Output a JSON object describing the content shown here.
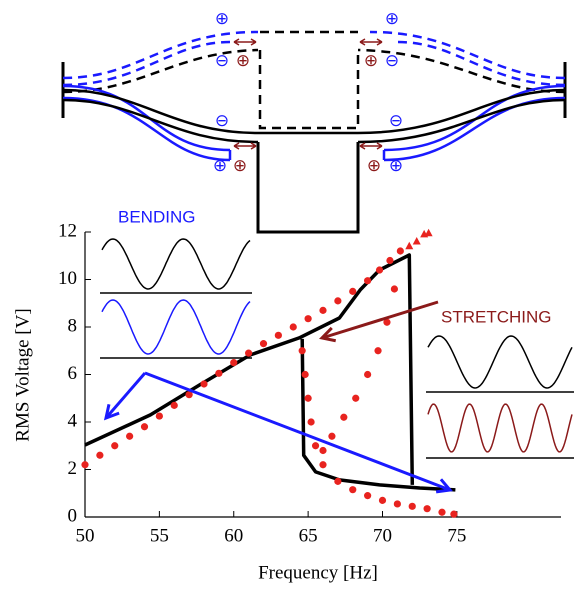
{
  "diagram": {
    "plus": "⊕",
    "minus": "⊖"
  },
  "chart_data": {
    "type": "line",
    "x_label": "Frequency [Hz]",
    "y_label": "RMS Voltage [V]",
    "annotations": [
      "BENDING",
      "STRETCHING"
    ],
    "xlim": [
      50,
      82
    ],
    "ylim": [
      0,
      12
    ],
    "xticks": [
      50,
      55,
      60,
      65,
      70,
      75
    ],
    "yticks": [
      0,
      2,
      4,
      6,
      8,
      10,
      12
    ],
    "series": [
      {
        "style": "line",
        "color": "#000000",
        "x": [
          50,
          54.4,
          57.7,
          61.1,
          64.4,
          67.1,
          68.5,
          69.8,
          71.8,
          72.0,
          null,
          64.6,
          64.7,
          65.5,
          67.1,
          69.8,
          72.5,
          74.9
        ],
        "values": [
          3.03,
          4.3,
          5.56,
          6.82,
          7.54,
          8.38,
          9.56,
          10.4,
          11.03,
          1.35,
          null,
          7.5,
          2.6,
          1.9,
          1.56,
          1.35,
          1.22,
          1.14
        ]
      },
      {
        "style": "dots",
        "color": "#e8231f",
        "x": [
          50,
          51,
          52,
          53,
          54,
          55,
          56,
          57,
          58,
          59,
          60,
          61,
          62,
          63,
          64,
          65,
          66,
          67,
          68,
          69,
          69.8,
          70.5,
          71.2,
          70.8,
          70.3,
          69.7,
          69,
          68.2,
          67.4,
          66.6,
          66,
          64.6,
          64.8,
          65,
          65.2,
          65.5,
          66,
          67,
          68,
          69,
          70,
          71,
          72,
          73,
          74,
          74.8
        ],
        "values": [
          2.2,
          2.6,
          3,
          3.4,
          3.8,
          4.25,
          4.7,
          5.15,
          5.6,
          6.05,
          6.5,
          6.9,
          7.3,
          7.65,
          8,
          8.35,
          8.7,
          9.1,
          9.5,
          9.95,
          10.4,
          10.8,
          11.2,
          9.6,
          8.2,
          7,
          6,
          5,
          4.2,
          3.4,
          2.8,
          7,
          6,
          5,
          4,
          3,
          2.2,
          1.5,
          1.15,
          0.9,
          0.7,
          0.55,
          0.45,
          0.35,
          0.2,
          0.12
        ]
      },
      {
        "style": "triangles",
        "color": "#e8231f",
        "x": [
          71.8,
          72.3,
          72.8,
          73.1
        ],
        "values": [
          11.4,
          11.6,
          11.9,
          11.95
        ]
      }
    ]
  }
}
